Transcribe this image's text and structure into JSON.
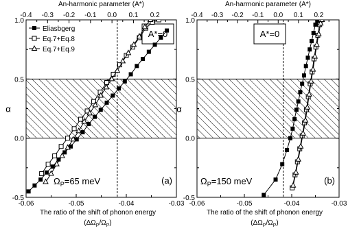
{
  "chart_data": [
    {
      "type": "line",
      "panel_label": "(a)",
      "annotation": "A*=0",
      "omega_label": {
        "symbol": "Ω",
        "sub": "P",
        "value": "=65 meV"
      },
      "xlim": [
        -0.06,
        -0.03
      ],
      "ylim": [
        -0.5,
        1.0
      ],
      "top_xlim": [
        -0.4,
        0.3
      ],
      "x_ticks": [
        -0.06,
        -0.05,
        -0.04,
        -0.03
      ],
      "x_tick_labels": [
        "-0.06",
        "-0.05",
        "-0.04",
        "-0.03"
      ],
      "top_ticks": [
        -0.4,
        -0.3,
        -0.2,
        -0.1,
        0.0,
        0.1,
        0.2
      ],
      "top_tick_labels": [
        "-0.4",
        "-0.3",
        "-0.2",
        "-0.1",
        "0.0",
        "0.1",
        "0.2"
      ],
      "y_ticks": [
        -0.5,
        0.0,
        0.5,
        1.0
      ],
      "y_tick_labels": [
        "-0.5",
        "0.0",
        "0.5",
        "1.0"
      ],
      "top_xlabel": "An-harmonic parameter (A*)",
      "xlabel": "The ratio of the shift of phonon energy",
      "xlabel2": {
        "open": "(ΔΩ",
        "sub1": "P",
        "mid": "/Ω",
        "sub2": "P",
        "close": ")"
      },
      "ylabel": "α",
      "hatched_band": [
        0.0,
        0.5
      ],
      "vline_x": -0.0418,
      "series": [
        {
          "name": "Eliasbgerg",
          "marker": "filled-square",
          "x": [
            -0.0595,
            -0.0583,
            -0.0571,
            -0.0559,
            -0.0547,
            -0.0535,
            -0.0523,
            -0.0511,
            -0.0499,
            -0.0487,
            -0.0475,
            -0.0463,
            -0.0451,
            -0.0439,
            -0.0427,
            -0.0415,
            -0.0403,
            -0.0391,
            -0.0379,
            -0.0367,
            -0.0355,
            -0.0343,
            -0.0331,
            -0.0319
          ],
          "y": [
            -0.45,
            -0.4,
            -0.35,
            -0.29,
            -0.24,
            -0.18,
            -0.12,
            -0.07,
            -0.01,
            0.05,
            0.12,
            0.18,
            0.24,
            0.3,
            0.36,
            0.42,
            0.48,
            0.54,
            0.61,
            0.67,
            0.73,
            0.79,
            0.85,
            0.91
          ]
        },
        {
          "name": "Eq.7+Eq.8",
          "marker": "open-square",
          "x": [
            -0.0569,
            -0.0556,
            -0.0543,
            -0.053,
            -0.0517,
            -0.0504,
            -0.0491,
            -0.0478,
            -0.0465,
            -0.0452,
            -0.0439,
            -0.0426,
            -0.0413,
            -0.04,
            -0.0387,
            -0.0374,
            -0.0361,
            -0.0348,
            -0.0335
          ],
          "y": [
            -0.3,
            -0.22,
            -0.15,
            -0.07,
            0.0,
            0.08,
            0.16,
            0.23,
            0.31,
            0.39,
            0.47,
            0.54,
            0.62,
            0.7,
            0.77,
            0.85,
            0.93,
            0.98,
            1.0
          ]
        },
        {
          "name": "Eq.7+Eq.9",
          "marker": "open-triangle",
          "x": [
            -0.0561,
            -0.055,
            -0.0539,
            -0.0528,
            -0.0517,
            -0.0506,
            -0.0495,
            -0.0484,
            -0.0473,
            -0.0462,
            -0.0451,
            -0.044,
            -0.0429,
            -0.0418,
            -0.0407,
            -0.0396,
            -0.0385,
            -0.0374,
            -0.0363,
            -0.0352
          ],
          "y": [
            -0.37,
            -0.3,
            -0.22,
            -0.15,
            -0.08,
            -0.01,
            0.06,
            0.14,
            0.21,
            0.28,
            0.36,
            0.43,
            0.5,
            0.57,
            0.65,
            0.72,
            0.79,
            0.86,
            0.94,
            1.0
          ]
        }
      ]
    },
    {
      "type": "line",
      "panel_label": "(b)",
      "annotation": "A*=0",
      "omega_label": {
        "symbol": "Ω",
        "sub": "P",
        "value": "=150 meV"
      },
      "xlim": [
        -0.06,
        -0.03
      ],
      "ylim": [
        -0.5,
        1.0
      ],
      "top_xlim": [
        -0.4,
        0.3
      ],
      "x_ticks": [
        -0.06,
        -0.05,
        -0.04,
        -0.03
      ],
      "x_tick_labels": [
        "-0.06",
        "-0.05",
        "-0.04",
        "-0.03"
      ],
      "top_ticks": [
        -0.4,
        -0.3,
        -0.2,
        -0.1,
        0.0,
        0.1,
        0.2
      ],
      "top_tick_labels": [
        "-0.4",
        "-0.3",
        "-0.2",
        "-0.1",
        "0.0",
        "0.1",
        "0.2"
      ],
      "y_ticks": [
        -0.5,
        0.0,
        0.5,
        1.0
      ],
      "y_tick_labels": [
        "-0.5",
        "0.0",
        "0.5",
        "1.0"
      ],
      "top_xlabel": "An-harmonic parameter (A*)",
      "xlabel": "The ratio of the shift of phonon energy",
      "xlabel2": {
        "open": "(ΔΩ",
        "sub1": "P",
        "mid": "/Ω",
        "sub2": "P",
        "close": ")"
      },
      "ylabel": "α",
      "hatched_band": [
        0.0,
        0.5
      ],
      "vline_x": -0.0418,
      "series": [
        {
          "name": "Eliasbgerg",
          "marker": "filled-square",
          "x": [
            -0.0459,
            -0.0434,
            -0.042,
            -0.041,
            -0.0403,
            -0.0398,
            -0.0394,
            -0.039,
            -0.0386,
            -0.0382,
            -0.0378,
            -0.0374,
            -0.037,
            -0.0366,
            -0.0362,
            -0.0358,
            -0.0354,
            -0.035,
            -0.0346,
            -0.0342
          ],
          "y": [
            -0.48,
            -0.35,
            -0.22,
            -0.1,
            0.0,
            0.08,
            0.16,
            0.24,
            0.31,
            0.39,
            0.46,
            0.53,
            0.61,
            0.68,
            0.75,
            0.82,
            0.89,
            0.96,
            0.99,
            1.0
          ]
        },
        {
          "name": "Eq.7+Eq.8",
          "marker": "open-square",
          "x": [
            -0.0399,
            -0.0393,
            -0.0388,
            -0.0383,
            -0.0378,
            -0.0373,
            -0.0369,
            -0.0365,
            -0.0361,
            -0.0357,
            -0.0353,
            -0.0349,
            -0.0345,
            -0.0341,
            -0.0338
          ],
          "y": [
            -0.42,
            -0.31,
            -0.2,
            -0.09,
            0.02,
            0.13,
            0.24,
            0.35,
            0.46,
            0.56,
            0.67,
            0.77,
            0.87,
            0.96,
            1.0
          ]
        },
        {
          "name": "Eq.7+Eq.9",
          "marker": "open-triangle",
          "x": [
            -0.0397,
            -0.0391,
            -0.0386,
            -0.0381,
            -0.0376,
            -0.0371,
            -0.0367,
            -0.0363,
            -0.0359,
            -0.0355,
            -0.0351,
            -0.0347,
            -0.0343,
            -0.0339,
            -0.0336
          ],
          "y": [
            -0.4,
            -0.29,
            -0.18,
            -0.07,
            0.04,
            0.15,
            0.26,
            0.37,
            0.48,
            0.58,
            0.69,
            0.79,
            0.88,
            0.97,
            1.0
          ]
        }
      ]
    }
  ]
}
